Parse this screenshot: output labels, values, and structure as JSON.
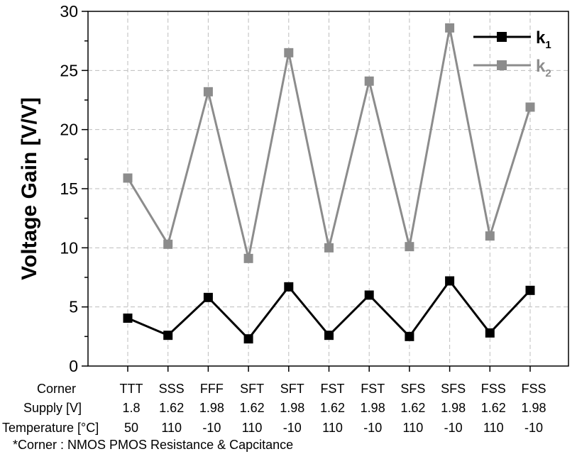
{
  "chart_data": {
    "type": "line",
    "ylabel": "Voltage Gain [V/V]",
    "ylim": [
      0,
      30
    ],
    "yticks": [
      "0",
      "5",
      "10",
      "15",
      "20",
      "25",
      "30"
    ],
    "grid": true,
    "legend_position": "top-right",
    "categories": [
      "TTT",
      "SSS",
      "FFF",
      "SFT",
      "SFT",
      "FST",
      "FST",
      "SFS",
      "SFS",
      "FSS",
      "FSS"
    ],
    "series": [
      {
        "name": "k",
        "subscript": "1",
        "color": "#000000",
        "values": [
          4.05,
          2.6,
          5.8,
          2.3,
          6.7,
          2.6,
          6.0,
          2.5,
          7.2,
          2.8,
          6.4
        ]
      },
      {
        "name": "k",
        "subscript": "2",
        "color": "#8c8c8c",
        "values": [
          15.9,
          10.3,
          23.2,
          9.1,
          26.5,
          10.0,
          24.1,
          10.1,
          28.6,
          11.0,
          21.9
        ]
      }
    ]
  },
  "table": {
    "rows": [
      {
        "label": "Corner",
        "values": [
          "TTT",
          "SSS",
          "FFF",
          "SFT",
          "SFT",
          "FST",
          "FST",
          "SFS",
          "SFS",
          "FSS",
          "FSS"
        ]
      },
      {
        "label": "Supply [V]",
        "values": [
          "1.8",
          "1.62",
          "1.98",
          "1.62",
          "1.98",
          "1.62",
          "1.98",
          "1.62",
          "1.98",
          "1.62",
          "1.98"
        ]
      },
      {
        "label": "Temperature [°C]",
        "values": [
          "50",
          "110",
          "-10",
          "110",
          "-10",
          "110",
          "-10",
          "110",
          "-10",
          "110",
          "-10"
        ]
      }
    ],
    "footnote": "*Corner : NMOS PMOS Resistance & Capcitance"
  }
}
